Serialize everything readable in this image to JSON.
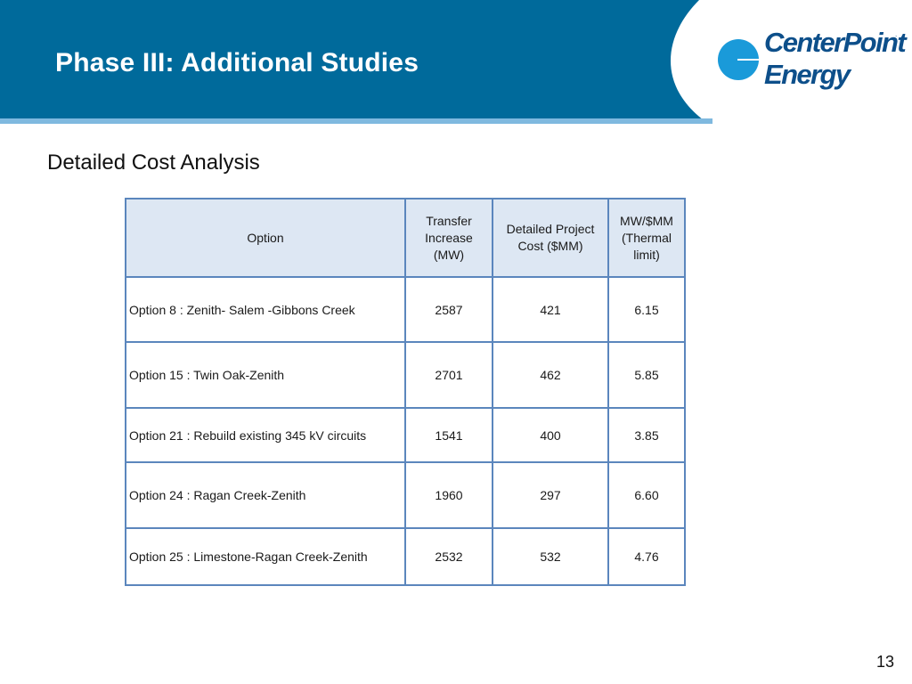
{
  "slide": {
    "title": "Phase III: Additional Studies",
    "subtitle": "Detailed Cost Analysis",
    "page_number": "13"
  },
  "logo": {
    "line1": "CenterPoint",
    "line2": "Energy",
    "trademark": "."
  },
  "colors": {
    "header_blue": "#006a9b",
    "header_light_band": "#7fb9df",
    "logo_blue": "#0d4f8a",
    "logo_mark": "#1a9ad9",
    "table_border": "#5b86bd",
    "table_header_bg": "#dde7f3"
  },
  "table": {
    "headers": {
      "option": "Option",
      "transfer": [
        "Transfer",
        "Increase",
        "(MW)"
      ],
      "cost": [
        "Detailed Project",
        "Cost ($MM)"
      ],
      "ratio": [
        "MW/$MM",
        "(Thermal",
        "limit)"
      ]
    },
    "rows": [
      {
        "option": "Option 8 : Zenith- Salem -Gibbons Creek",
        "transfer": "2587",
        "cost": "421",
        "ratio": "6.15"
      },
      {
        "option": "Option 15 : Twin Oak-Zenith",
        "transfer": "2701",
        "cost": "462",
        "ratio": "5.85"
      },
      {
        "option": "Option 21 : Rebuild existing 345 kV circuits",
        "transfer": "1541",
        "cost": "400",
        "ratio": "3.85"
      },
      {
        "option": "Option 24 : Ragan Creek-Zenith",
        "transfer": "1960",
        "cost": "297",
        "ratio": "6.60"
      },
      {
        "option": "Option 25 : Limestone-Ragan Creek-Zenith",
        "transfer": "2532",
        "cost": "532",
        "ratio": "4.76"
      }
    ]
  }
}
